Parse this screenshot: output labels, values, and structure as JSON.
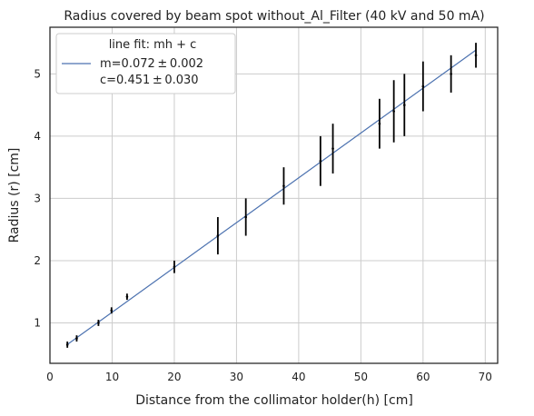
{
  "chart_data": {
    "type": "scatter",
    "title": "Radius covered by beam spot without_Al_Filter (40 kV and 50 mA)",
    "xlabel": "Distance from the  collimator holder(h) [cm]",
    "ylabel": "Radius (r) [cm]",
    "xlim": [
      0,
      72
    ],
    "ylim": [
      0.35,
      5.75
    ],
    "xticks": [
      0,
      10,
      20,
      30,
      40,
      50,
      60,
      70
    ],
    "yticks": [
      1,
      2,
      3,
      4,
      5
    ],
    "grid": true,
    "legend_placement": "upper-left",
    "legend": {
      "title": "line fit: mh + c",
      "line1": " m=0.072 ± 0.002",
      "line2": "c=0.451 ± 0.030"
    },
    "fit": {
      "m": 0.072,
      "c": 0.451,
      "x_range": [
        2.8,
        68.5
      ],
      "color": "#4c72b0"
    },
    "points": [
      {
        "x": 2.8,
        "y": 0.65,
        "err": 0.05
      },
      {
        "x": 4.3,
        "y": 0.75,
        "err": 0.05
      },
      {
        "x": 7.8,
        "y": 1.0,
        "err": 0.05
      },
      {
        "x": 9.9,
        "y": 1.2,
        "err": 0.05
      },
      {
        "x": 12.4,
        "y": 1.42,
        "err": 0.05
      },
      {
        "x": 20.0,
        "y": 1.9,
        "err": 0.1
      },
      {
        "x": 27.0,
        "y": 2.4,
        "err": 0.3
      },
      {
        "x": 31.5,
        "y": 2.7,
        "err": 0.3
      },
      {
        "x": 37.6,
        "y": 3.2,
        "err": 0.3
      },
      {
        "x": 43.5,
        "y": 3.6,
        "err": 0.4
      },
      {
        "x": 45.5,
        "y": 3.8,
        "err": 0.4
      },
      {
        "x": 53.0,
        "y": 4.2,
        "err": 0.4
      },
      {
        "x": 55.3,
        "y": 4.4,
        "err": 0.5
      },
      {
        "x": 57.0,
        "y": 4.5,
        "err": 0.5
      },
      {
        "x": 60.0,
        "y": 4.8,
        "err": 0.4
      },
      {
        "x": 64.5,
        "y": 5.0,
        "err": 0.3
      },
      {
        "x": 68.5,
        "y": 5.3,
        "err": 0.2
      }
    ],
    "colors": {
      "grid": "#cccccc",
      "axes": "#222222",
      "errorbar": "#000000"
    }
  }
}
